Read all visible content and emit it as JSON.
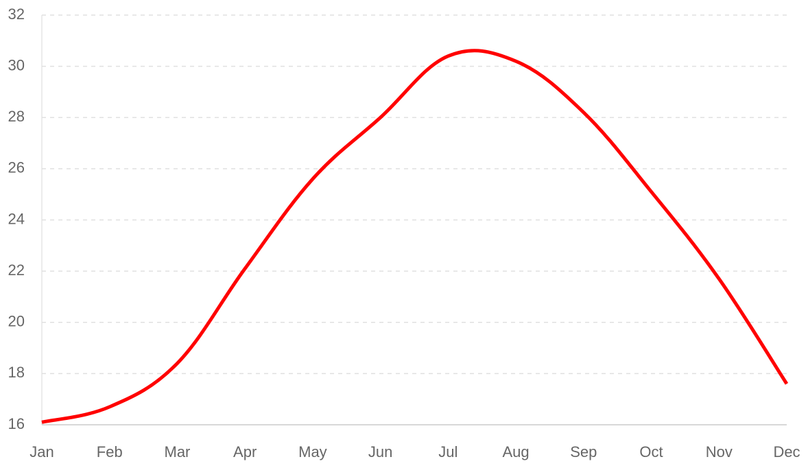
{
  "chart_data": {
    "type": "line",
    "categories": [
      "Jan",
      "Feb",
      "Mar",
      "Apr",
      "May",
      "Jun",
      "Jul",
      "Aug",
      "Sep",
      "Oct",
      "Nov",
      "Dec"
    ],
    "series": [
      {
        "color": "#ff0000",
        "values": [
          16.1,
          16.7,
          18.4,
          22.1,
          25.6,
          28.0,
          30.4,
          30.2,
          28.2,
          25.1,
          21.7,
          17.6
        ]
      }
    ],
    "ylim": [
      16,
      32
    ],
    "yticks": [
      16,
      18,
      20,
      22,
      24,
      26,
      28,
      30,
      32
    ],
    "grid": true,
    "smooth": true
  }
}
